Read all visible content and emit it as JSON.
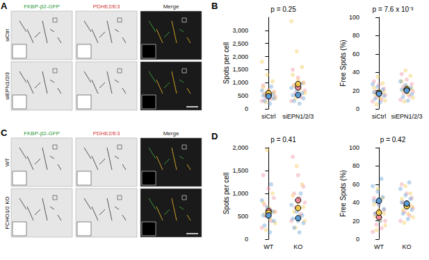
{
  "image_panels": [
    {
      "panel": "A",
      "columns": [
        "FKBP-β2-GFP",
        "PDHE2/E3",
        "Merge"
      ],
      "rows": [
        "siCtrl",
        "siEPN1/2/3"
      ]
    },
    {
      "panel": "C",
      "columns": [
        "FKBP-β2-GFP",
        "PDHE2/E3",
        "Merge"
      ],
      "rows": [
        "WT",
        "FCHO1/2 KO"
      ]
    }
  ],
  "chart_data": [
    {
      "type": "scatter",
      "panel": "B",
      "title": "p = 0.25",
      "y_label": "Spots per cell",
      "categories": [
        "siCtrl",
        "siEPN1/2/3"
      ],
      "ylim": [
        0,
        3500
      ],
      "yticks": [
        0,
        500,
        1000,
        1500,
        2000,
        2500,
        3000
      ],
      "grid": false,
      "series": [
        {
          "color": "#ee8a9a",
          "values": [
            [
              300,
              380,
              420,
              480,
              520,
              560,
              650,
              720,
              900
            ],
            [
              300,
              450,
              600,
              700,
              800,
              900,
              1000,
              1200,
              1500
            ]
          ],
          "means": [
            540,
            820
          ]
        },
        {
          "color": "#f2c94c",
          "values": [
            [
              250,
              400,
              500,
              580,
              620,
              700,
              820,
              1050,
              1300,
              1800
            ],
            [
              400,
              600,
              750,
              900,
              1000,
              1100,
              1300,
              1600,
              2200,
              3350
            ]
          ],
          "means": [
            600,
            950
          ]
        },
        {
          "color": "#5b9bd5",
          "values": [
            [
              200,
              300,
              400,
              450,
              500,
              550,
              620,
              700,
              850
            ],
            [
              200,
              300,
              400,
              480,
              520,
              600,
              700,
              800,
              950
            ]
          ],
          "means": [
            480,
            530
          ]
        }
      ]
    },
    {
      "type": "scatter",
      "title": "p = 7.6 x 10⁻³",
      "y_label": "Free Spots (%)",
      "categories": [
        "siCtrl",
        "siEPN1/2/3"
      ],
      "ylim": [
        0,
        100
      ],
      "yticks": [
        0,
        20,
        40,
        60,
        80,
        100
      ],
      "grid": false,
      "series": [
        {
          "color": "#ee8a9a",
          "values": [
            [
              8,
              10,
              13,
              15,
              17,
              19,
              22,
              26,
              30
            ],
            [
              10,
              14,
              17,
              19,
              21,
              24,
              27,
              32,
              38
            ]
          ],
          "means": [
            17,
            21
          ]
        },
        {
          "color": "#f2c94c",
          "values": [
            [
              5,
              9,
              12,
              16,
              18,
              20,
              23,
              28,
              35
            ],
            [
              8,
              12,
              16,
              20,
              22,
              25,
              30,
              36,
              42
            ]
          ],
          "means": [
            17.5,
            21.5
          ]
        },
        {
          "color": "#5b9bd5",
          "values": [
            [
              7,
              11,
              14,
              16,
              18,
              21,
              24,
              27
            ],
            [
              9,
              13,
              16,
              19,
              21,
              23,
              26,
              30
            ]
          ],
          "means": [
            16.5,
            20
          ]
        }
      ]
    },
    {
      "type": "scatter",
      "panel": "D",
      "title": "p = 0.41",
      "y_label": "Spots per cell",
      "categories": [
        "WT",
        "KO"
      ],
      "ylim": [
        0,
        2000
      ],
      "yticks": [
        0,
        500,
        1000,
        1500,
        2000
      ],
      "grid": false,
      "series": [
        {
          "color": "#ee8a9a",
          "values": [
            [
              250,
              400,
              500,
              600,
              650,
              750,
              900,
              1100,
              1400
            ],
            [
              400,
              550,
              700,
              800,
              900,
              1000,
              1150,
              1400,
              1800
            ]
          ],
          "means": [
            620,
            850
          ]
        },
        {
          "color": "#f2c94c",
          "values": [
            [
              200,
              350,
              450,
              550,
              600,
              700,
              800,
              1000,
              1950
            ],
            [
              250,
              400,
              500,
              600,
              700,
              800,
              950,
              1200,
              1600
            ]
          ],
          "means": [
            580,
            680
          ]
        },
        {
          "color": "#5b9bd5",
          "values": [
            [
              150,
              300,
              400,
              480,
              520,
              600,
              700,
              850,
              1200
            ],
            [
              150,
              250,
              350,
              400,
              450,
              520,
              600,
              750,
              1000
            ]
          ],
          "means": [
            520,
            460
          ]
        }
      ]
    },
    {
      "type": "scatter",
      "title": "p = 0.42",
      "y_label": "Free Spots (%)",
      "categories": [
        "WT",
        "KO"
      ],
      "ylim": [
        0,
        100
      ],
      "yticks": [
        0,
        20,
        40,
        60,
        80,
        100
      ],
      "grid": false,
      "series": [
        {
          "color": "#ee8a9a",
          "values": [
            [
              8,
              12,
              16,
              20,
              24,
              28,
              32,
              38,
              45
            ],
            [
              20,
              26,
              30,
              34,
              37,
              40,
              45,
              50,
              60
            ]
          ],
          "means": [
            24,
            37
          ]
        },
        {
          "color": "#f2c94c",
          "values": [
            [
              10,
              15,
              20,
              25,
              28,
              32,
              38,
              45,
              55
            ],
            [
              18,
              24,
              28,
              32,
              36,
              40,
              44,
              50,
              58
            ]
          ],
          "means": [
            29,
            36
          ]
        },
        {
          "color": "#5b9bd5",
          "values": [
            [
              20,
              28,
              33,
              38,
              42,
              46,
              52,
              58,
              66
            ],
            [
              22,
              28,
              32,
              36,
              40,
              44,
              48,
              55,
              62
            ]
          ],
          "means": [
            42,
            39
          ]
        }
      ]
    }
  ]
}
